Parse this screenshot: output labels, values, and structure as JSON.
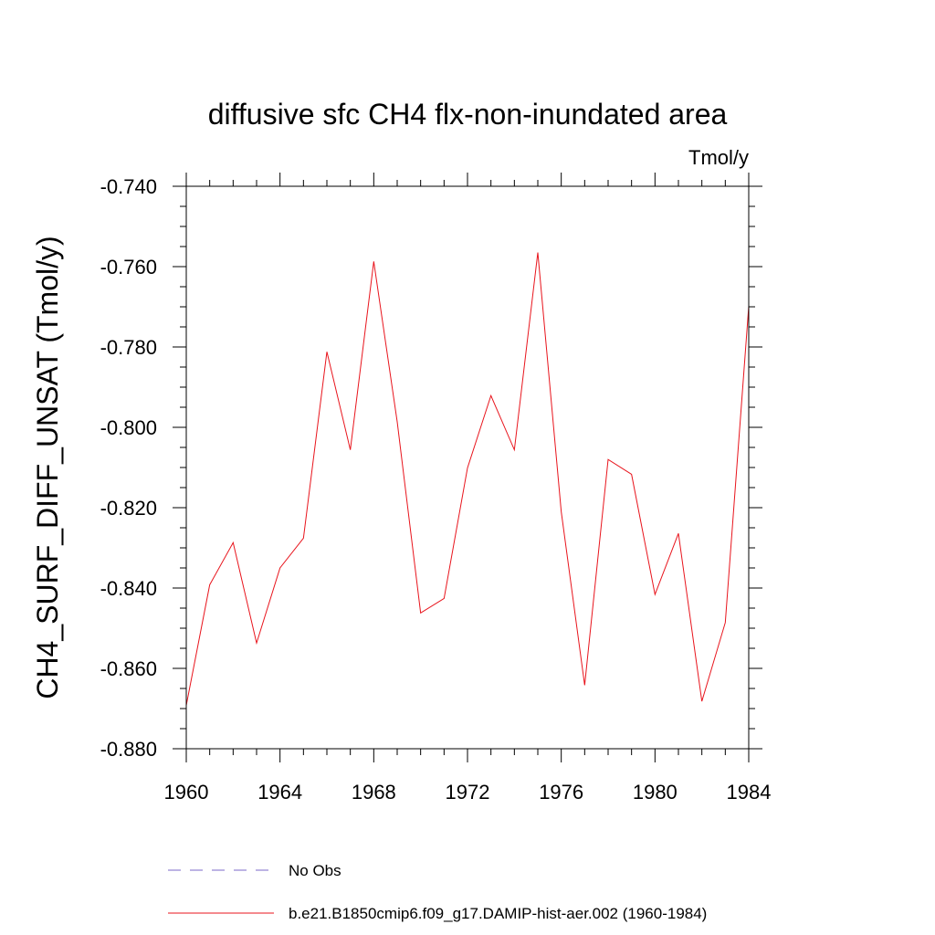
{
  "chart_data": {
    "type": "line",
    "title": "diffusive sfc CH4 flx-non-inundated area",
    "units_label": "Tmol/y",
    "xlabel": "",
    "ylabel": "CH4_SURF_DIFF_UNSAT  (Tmol/y)",
    "xlim": [
      1960,
      1984
    ],
    "ylim": [
      -0.88,
      -0.74
    ],
    "x_ticks": [
      "1960",
      "1964",
      "1968",
      "1972",
      "1976",
      "1980",
      "1984"
    ],
    "y_ticks": [
      "-0.740",
      "-0.760",
      "-0.780",
      "-0.800",
      "-0.820",
      "-0.840",
      "-0.860",
      "-0.880"
    ],
    "grid": false,
    "legend_position": "bottom",
    "series": [
      {
        "name": "No Obs",
        "color": "#7b68c8",
        "style": "dashed",
        "x": [],
        "values": []
      },
      {
        "name": "b.e21.B1850cmip6.f09_g17.DAMIP-hist-aer.002 (1960-1984)",
        "color": "#e8141c",
        "style": "solid",
        "x": [
          1960,
          1961,
          1962,
          1963,
          1964,
          1965,
          1966,
          1967,
          1968,
          1969,
          1970,
          1971,
          1972,
          1973,
          1974,
          1975,
          1976,
          1977,
          1978,
          1979,
          1980,
          1981,
          1982,
          1983,
          1984
        ],
        "values": [
          -0.8692,
          -0.8392,
          -0.8287,
          -0.8537,
          -0.835,
          -0.8276,
          -0.7812,
          -0.8056,
          -0.7587,
          -0.7986,
          -0.8462,
          -0.8426,
          -0.8101,
          -0.7921,
          -0.8056,
          -0.7565,
          -0.821,
          -0.8642,
          -0.808,
          -0.8117,
          -0.8416,
          -0.8264,
          -0.8682,
          -0.8486,
          -0.7699
        ]
      }
    ]
  }
}
